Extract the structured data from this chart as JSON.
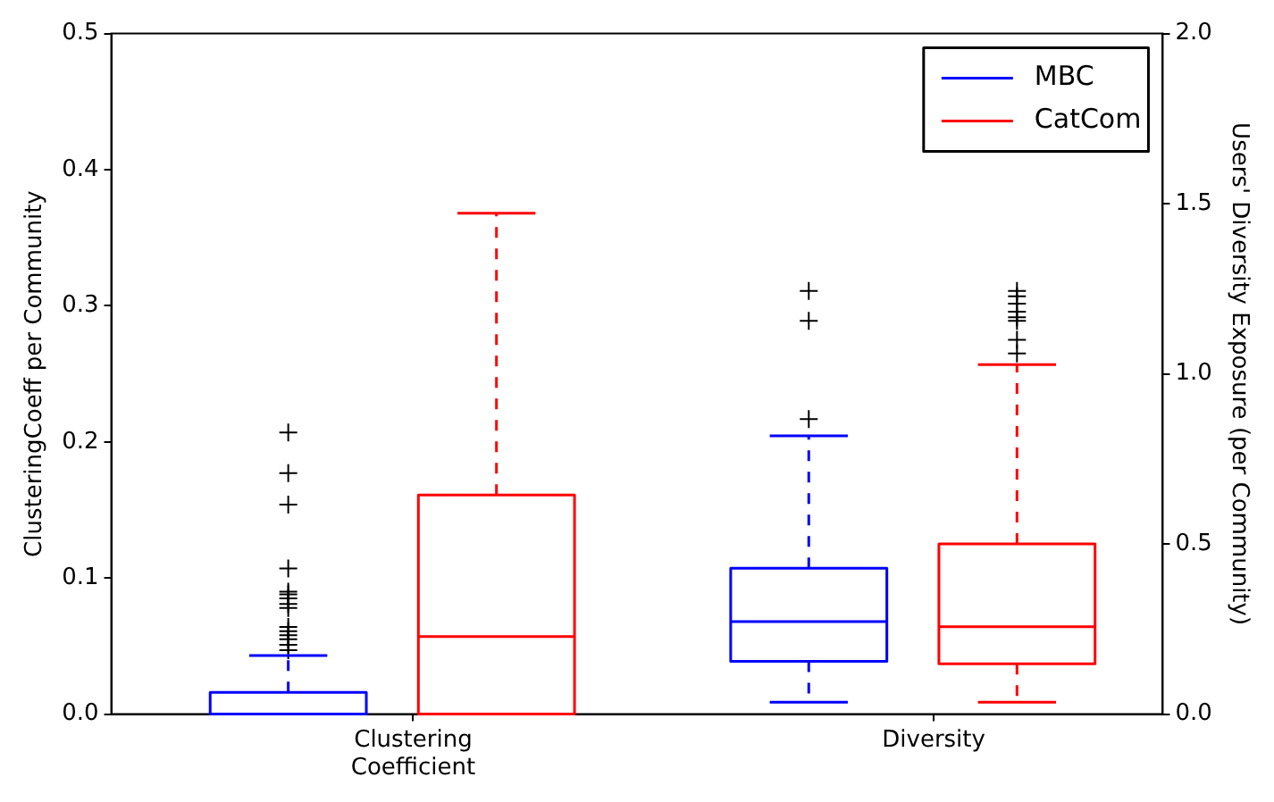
{
  "chart_data": {
    "type": "box",
    "ylabel": "ClusteringCoeff per Community",
    "y2label": "Users' Diversity Exposure (per Community)",
    "categories": [
      "Clustering Coefficient",
      "Diversity"
    ],
    "ylim": [
      0,
      0.5
    ],
    "yticks": [
      {
        "value": 0,
        "label": "0.0"
      },
      {
        "value": 0.1,
        "label": "0.1"
      },
      {
        "value": 0.2,
        "label": "0.2"
      },
      {
        "value": 0.3,
        "label": "0.3"
      },
      {
        "value": 0.4,
        "label": "0.4"
      },
      {
        "value": 0.5,
        "label": "0.5"
      }
    ],
    "y2lim": [
      0,
      2
    ],
    "y2ticks": [
      {
        "value": 0,
        "label": "0.0"
      },
      {
        "value": 0.5,
        "label": "0.5"
      },
      {
        "value": 1,
        "label": "1.0"
      },
      {
        "value": 1.5,
        "label": "1.5"
      },
      {
        "value": 2,
        "label": "2.0"
      }
    ],
    "legend": "top right",
    "line_style": "dashed",
    "marker": "cross",
    "series": [
      {
        "name": "MBC",
        "color": "#0000ff",
        "boxes": [
          {
            "low": 0,
            "q1": 0,
            "median": 0,
            "q3": 0.016,
            "high": 0.043,
            "outliers": [
              0.207,
              0.177,
              0.154,
              0.107,
              0.09,
              0.088,
              0.085,
              0.081,
              0.078,
              0.064,
              0.061,
              0.058,
              0.055,
              0.051,
              0.047
            ]
          },
          null
        ]
      },
      {
        "name": "CatCom",
        "color": "#ff0000",
        "boxes": [
          {
            "low": 0,
            "q1": 0,
            "median": 0.057,
            "q3": 0.161,
            "high": 0.368
          },
          null
        ]
      },
      {
        "color": "#0000ff",
        "axis": "y2",
        "boxes": [
          null,
          {
            "low": 0.035,
            "q1": 0.155,
            "median": 0.272,
            "q3": 0.429,
            "high": 0.818,
            "outliers": [
              0.867,
              1.156,
              1.244
            ]
          }
        ]
      },
      {
        "color": "#ff0000",
        "axis": "y2",
        "boxes": [
          null,
          {
            "low": 0.035,
            "q1": 0.148,
            "median": 0.257,
            "q3": 0.5,
            "high": 1.027,
            "outliers": [
              1.06,
              1.1,
              1.156,
              1.166,
              1.183,
              1.206,
              1.228,
              1.244
            ]
          }
        ]
      }
    ]
  }
}
